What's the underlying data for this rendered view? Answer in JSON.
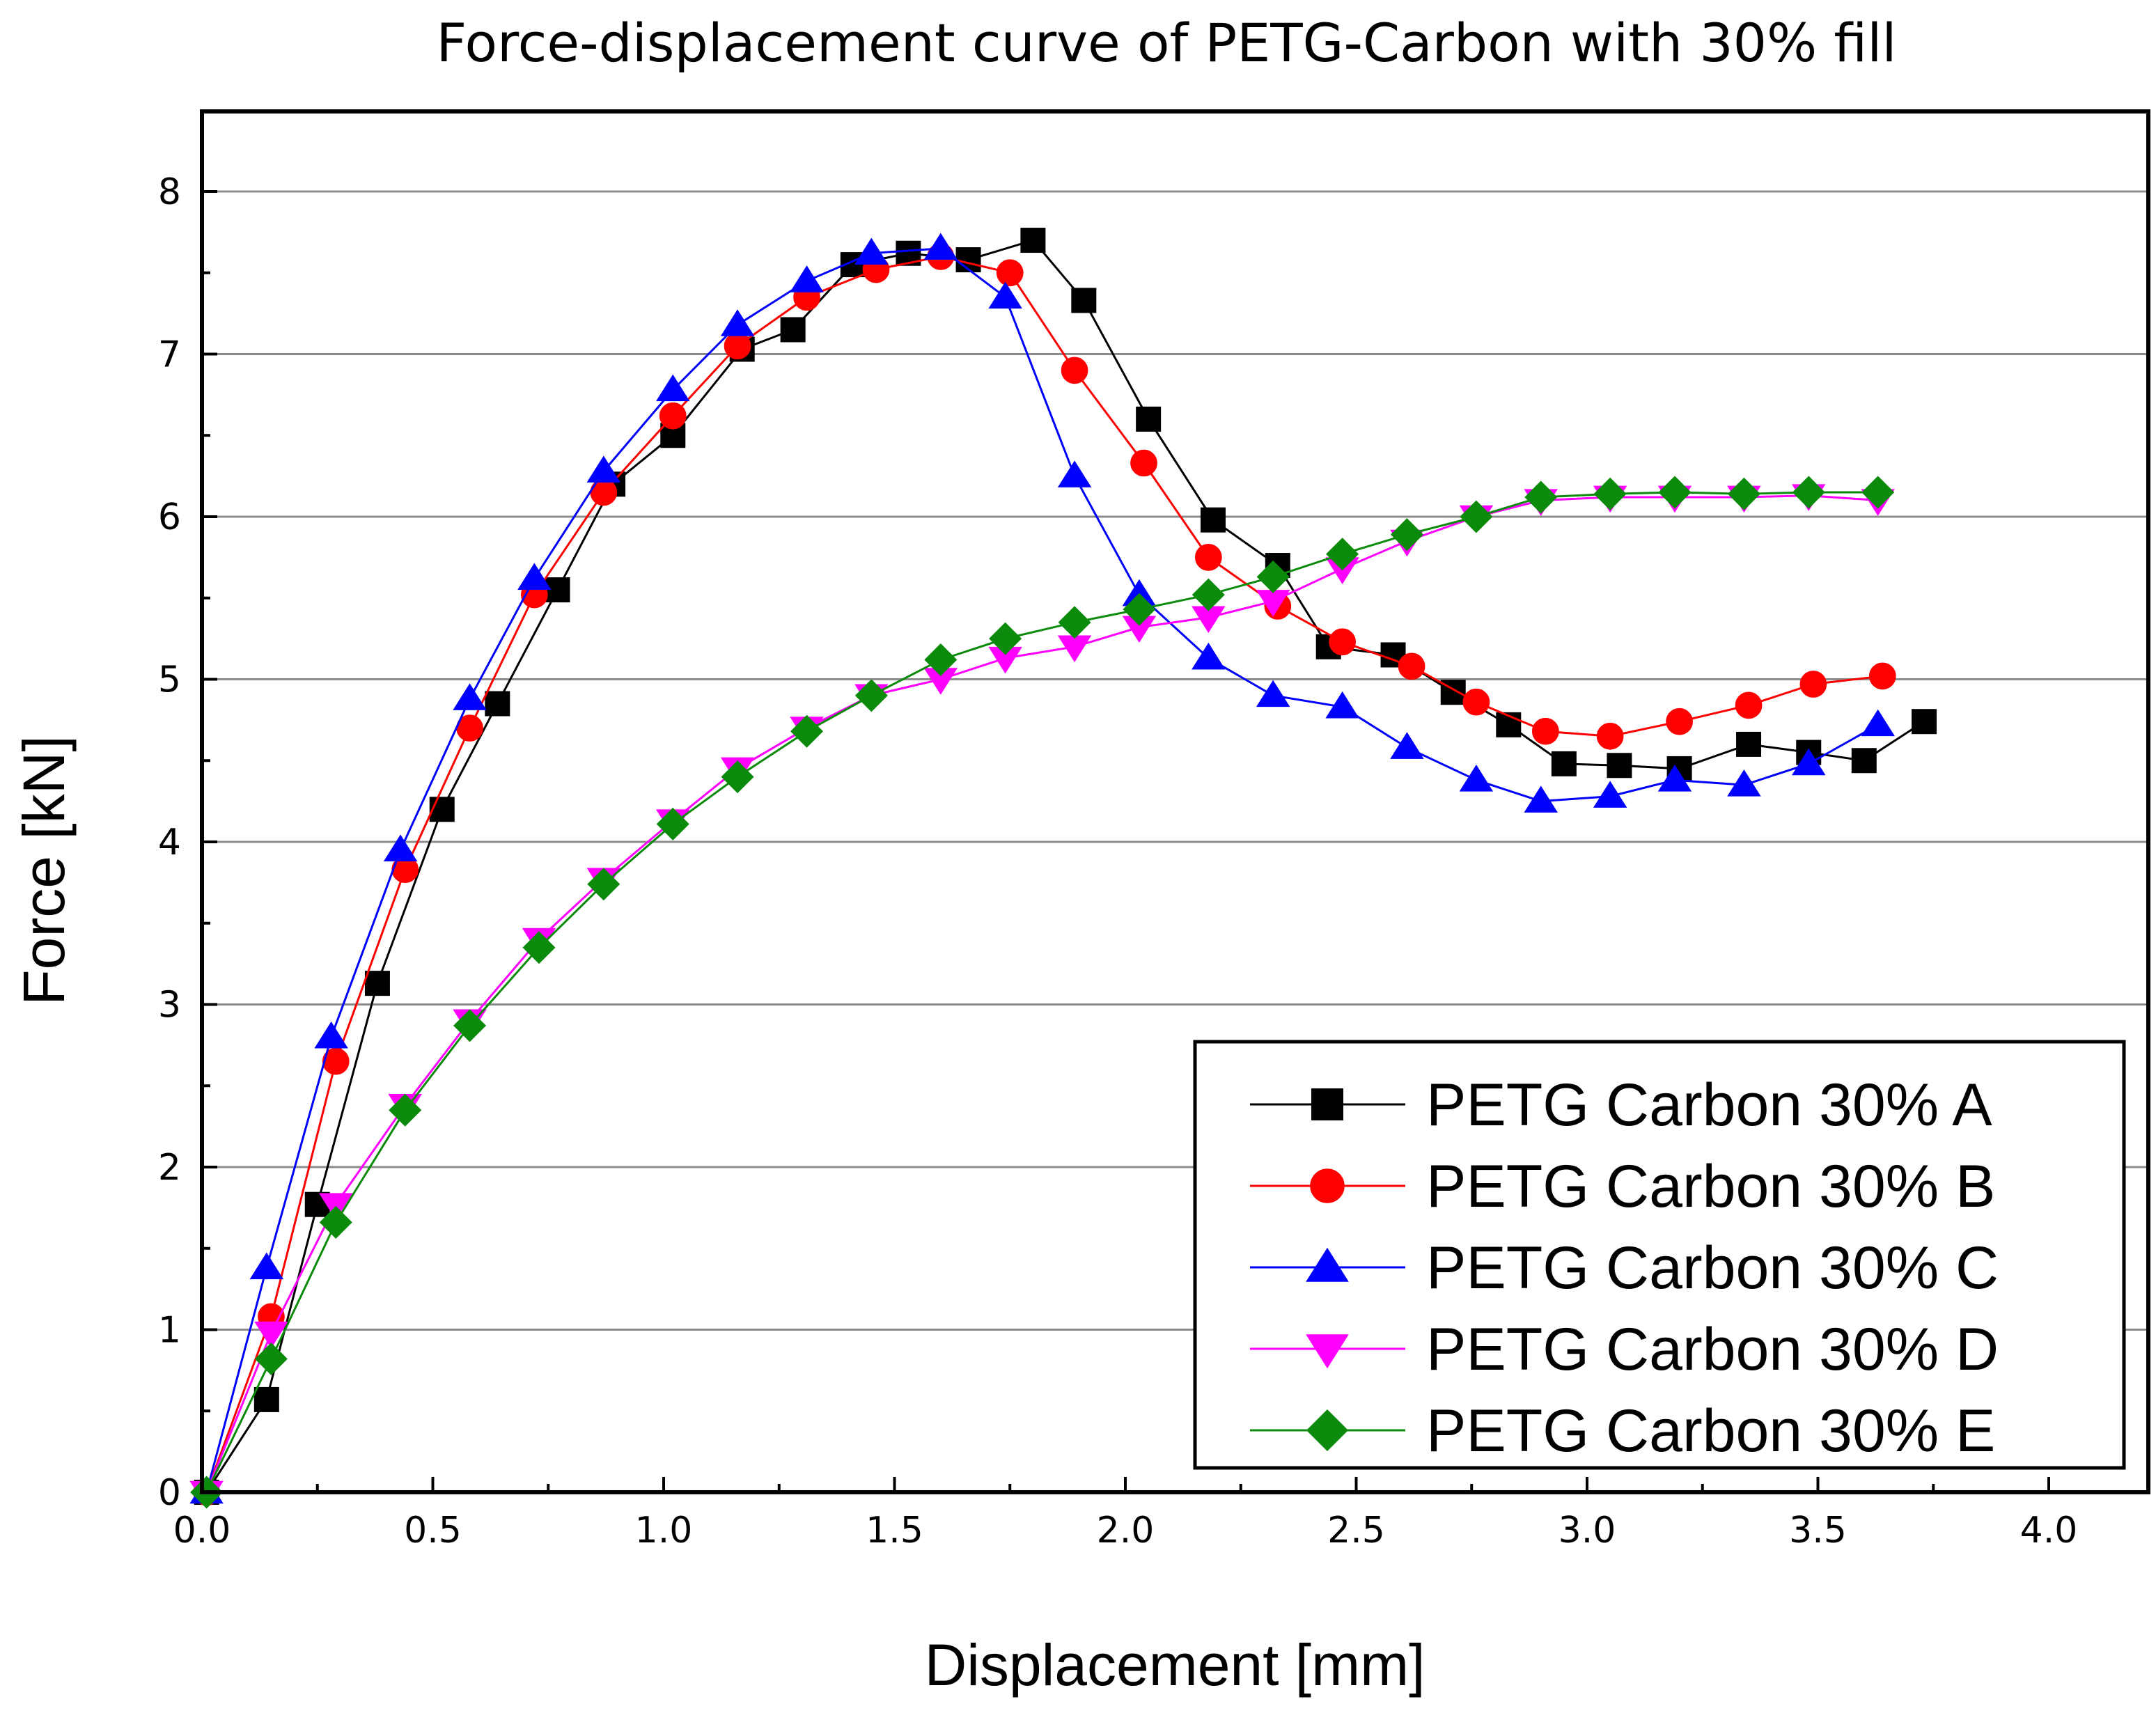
{
  "chart_data": {
    "type": "line",
    "title": "Force-displacement curve of PETG-Carbon with 30% fill",
    "xlabel": "Displacement [mm]",
    "ylabel": "Force [kN]",
    "xlim": [
      0.0,
      4.2
    ],
    "ylim": [
      0,
      8.5
    ],
    "xticks": [
      0.0,
      0.5,
      1.0,
      1.5,
      2.0,
      2.5,
      3.0,
      3.5,
      4.0
    ],
    "xtick_labels": [
      "0.0",
      "0.5",
      "1.0",
      "1.5",
      "2.0",
      "2.5",
      "3.0",
      "3.5",
      "4.0"
    ],
    "yticks": [
      0,
      1,
      2,
      3,
      4,
      5,
      6,
      7,
      8
    ],
    "ytick_labels": [
      "0",
      "1",
      "2",
      "3",
      "4",
      "5",
      "6",
      "7",
      "8"
    ],
    "grid": "horizontal",
    "legend_position": "bottom-right",
    "series": [
      {
        "name": "PETG Carbon 30% A",
        "color": "#000000",
        "marker": "square",
        "x": [
          0.01,
          0.14,
          0.25,
          0.38,
          0.52,
          0.64,
          0.77,
          0.89,
          1.02,
          1.17,
          1.28,
          1.41,
          1.53,
          1.66,
          1.8,
          1.91,
          2.05,
          2.19,
          2.33,
          2.44,
          2.58,
          2.71,
          2.83,
          2.95,
          3.07,
          3.2,
          3.35,
          3.48,
          3.6,
          3.73
        ],
        "y": [
          0.0,
          0.57,
          1.77,
          3.13,
          4.2,
          4.85,
          5.55,
          6.2,
          6.5,
          7.03,
          7.15,
          7.55,
          7.62,
          7.58,
          7.7,
          7.33,
          6.6,
          5.98,
          5.7,
          5.2,
          5.15,
          4.92,
          4.72,
          4.48,
          4.47,
          4.45,
          4.6,
          4.55,
          4.5,
          4.74
        ]
      },
      {
        "name": "PETG Carbon 30% B",
        "color": "#ff0000",
        "marker": "circle",
        "x": [
          0.01,
          0.15,
          0.29,
          0.44,
          0.58,
          0.72,
          0.87,
          1.02,
          1.16,
          1.31,
          1.46,
          1.6,
          1.75,
          1.89,
          2.04,
          2.18,
          2.33,
          2.47,
          2.62,
          2.76,
          2.91,
          3.05,
          3.2,
          3.35,
          3.49,
          3.64
        ],
        "y": [
          0.0,
          1.08,
          2.65,
          3.83,
          4.7,
          5.52,
          6.15,
          6.62,
          7.05,
          7.35,
          7.52,
          7.6,
          7.5,
          6.9,
          6.33,
          5.75,
          5.45,
          5.23,
          5.08,
          4.86,
          4.68,
          4.65,
          4.74,
          4.84,
          4.97,
          5.02
        ]
      },
      {
        "name": "PETG Carbon 30% C",
        "color": "#0000ff",
        "marker": "triangle-up",
        "x": [
          0.01,
          0.14,
          0.28,
          0.43,
          0.58,
          0.72,
          0.87,
          1.02,
          1.16,
          1.31,
          1.45,
          1.6,
          1.74,
          1.89,
          2.03,
          2.18,
          2.32,
          2.47,
          2.61,
          2.76,
          2.9,
          3.05,
          3.19,
          3.34,
          3.48,
          3.63
        ],
        "y": [
          0.0,
          1.38,
          2.8,
          3.95,
          4.88,
          5.62,
          6.28,
          6.78,
          7.18,
          7.45,
          7.62,
          7.65,
          7.35,
          6.25,
          5.52,
          5.13,
          4.9,
          4.83,
          4.58,
          4.38,
          4.25,
          4.28,
          4.38,
          4.35,
          4.48,
          4.72
        ]
      },
      {
        "name": "PETG Carbon 30% D",
        "color": "#ff00ff",
        "marker": "triangle-down",
        "x": [
          0.01,
          0.15,
          0.29,
          0.44,
          0.58,
          0.73,
          0.87,
          1.02,
          1.16,
          1.31,
          1.45,
          1.6,
          1.74,
          1.89,
          2.03,
          2.18,
          2.32,
          2.47,
          2.61,
          2.76,
          2.9,
          3.05,
          3.19,
          3.34,
          3.48,
          3.63
        ],
        "y": [
          0.0,
          0.98,
          1.77,
          2.38,
          2.9,
          3.4,
          3.77,
          4.13,
          4.45,
          4.7,
          4.9,
          5.0,
          5.13,
          5.2,
          5.32,
          5.38,
          5.48,
          5.68,
          5.85,
          6.0,
          6.1,
          6.12,
          6.12,
          6.12,
          6.13,
          6.1
        ]
      },
      {
        "name": "PETG Carbon 30% E",
        "color": "#0b8a0b",
        "marker": "diamond",
        "x": [
          0.01,
          0.15,
          0.29,
          0.44,
          0.58,
          0.73,
          0.87,
          1.02,
          1.16,
          1.31,
          1.45,
          1.6,
          1.74,
          1.89,
          2.03,
          2.18,
          2.32,
          2.47,
          2.61,
          2.76,
          2.9,
          3.05,
          3.19,
          3.34,
          3.48,
          3.63
        ],
        "y": [
          0.0,
          0.82,
          1.66,
          2.35,
          2.87,
          3.35,
          3.74,
          4.11,
          4.4,
          4.68,
          4.9,
          5.12,
          5.25,
          5.35,
          5.43,
          5.52,
          5.63,
          5.77,
          5.89,
          6.0,
          6.12,
          6.14,
          6.15,
          6.14,
          6.15,
          6.15
        ]
      }
    ]
  }
}
